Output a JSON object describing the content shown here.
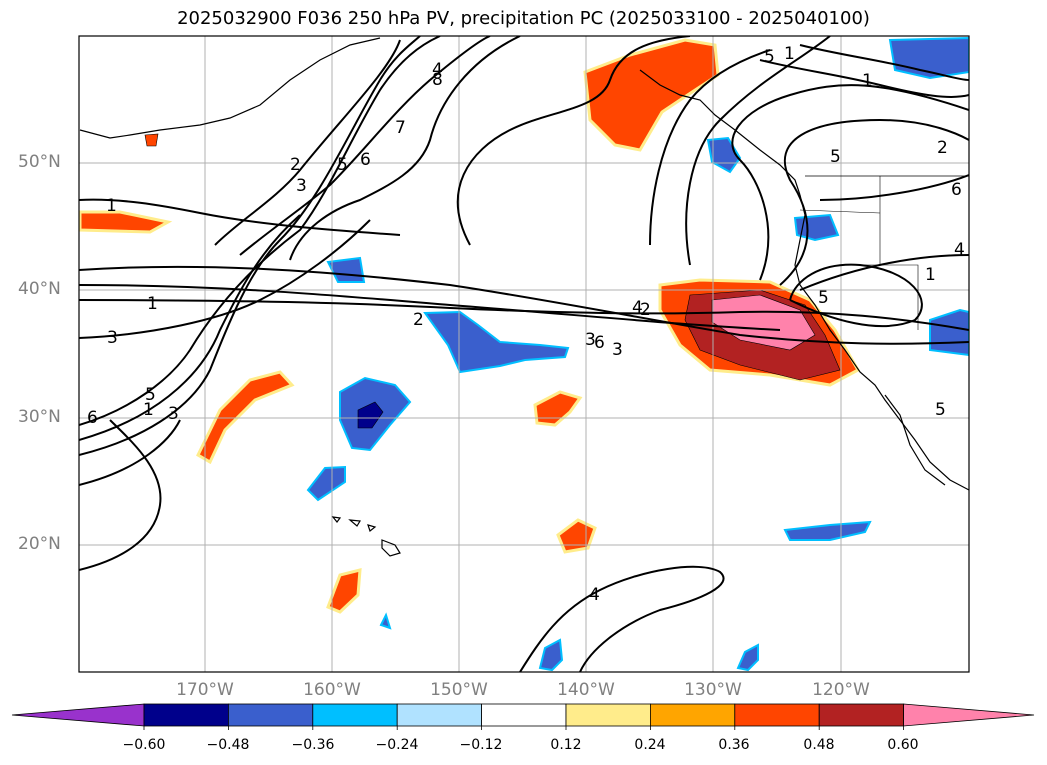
{
  "title": "2025032900 F036 250 hPa PV, precipitation PC (2025033100 - 2025040100)",
  "lat_labels": [
    "50°N",
    "40°N",
    "30°N",
    "20°N"
  ],
  "lon_labels": [
    "170°W",
    "160°W",
    "150°W",
    "140°W",
    "130°W",
    "120°W"
  ],
  "contour_labels": [
    "1",
    "2",
    "3",
    "4",
    "5",
    "6",
    "7",
    "8",
    "1",
    "2",
    "3",
    "4",
    "5",
    "6",
    "1",
    "3",
    "5",
    "6",
    "4",
    "2",
    "5",
    "1",
    "1",
    "5",
    "6",
    "4",
    "5",
    "1",
    "2",
    "3",
    "3"
  ],
  "colorbar": {
    "ticks": [
      "−0.60",
      "−0.48",
      "−0.36",
      "−0.24",
      "−0.12",
      "0.12",
      "0.24",
      "0.36",
      "0.48",
      "0.60"
    ],
    "colors": [
      "#9932cc",
      "#00008b",
      "#3a5fcd",
      "#00bfff",
      "#b0e2ff",
      "#ffffff",
      "#ffec8b",
      "#ffa500",
      "#ff4500",
      "#b22222",
      "#ff82ab"
    ]
  }
}
